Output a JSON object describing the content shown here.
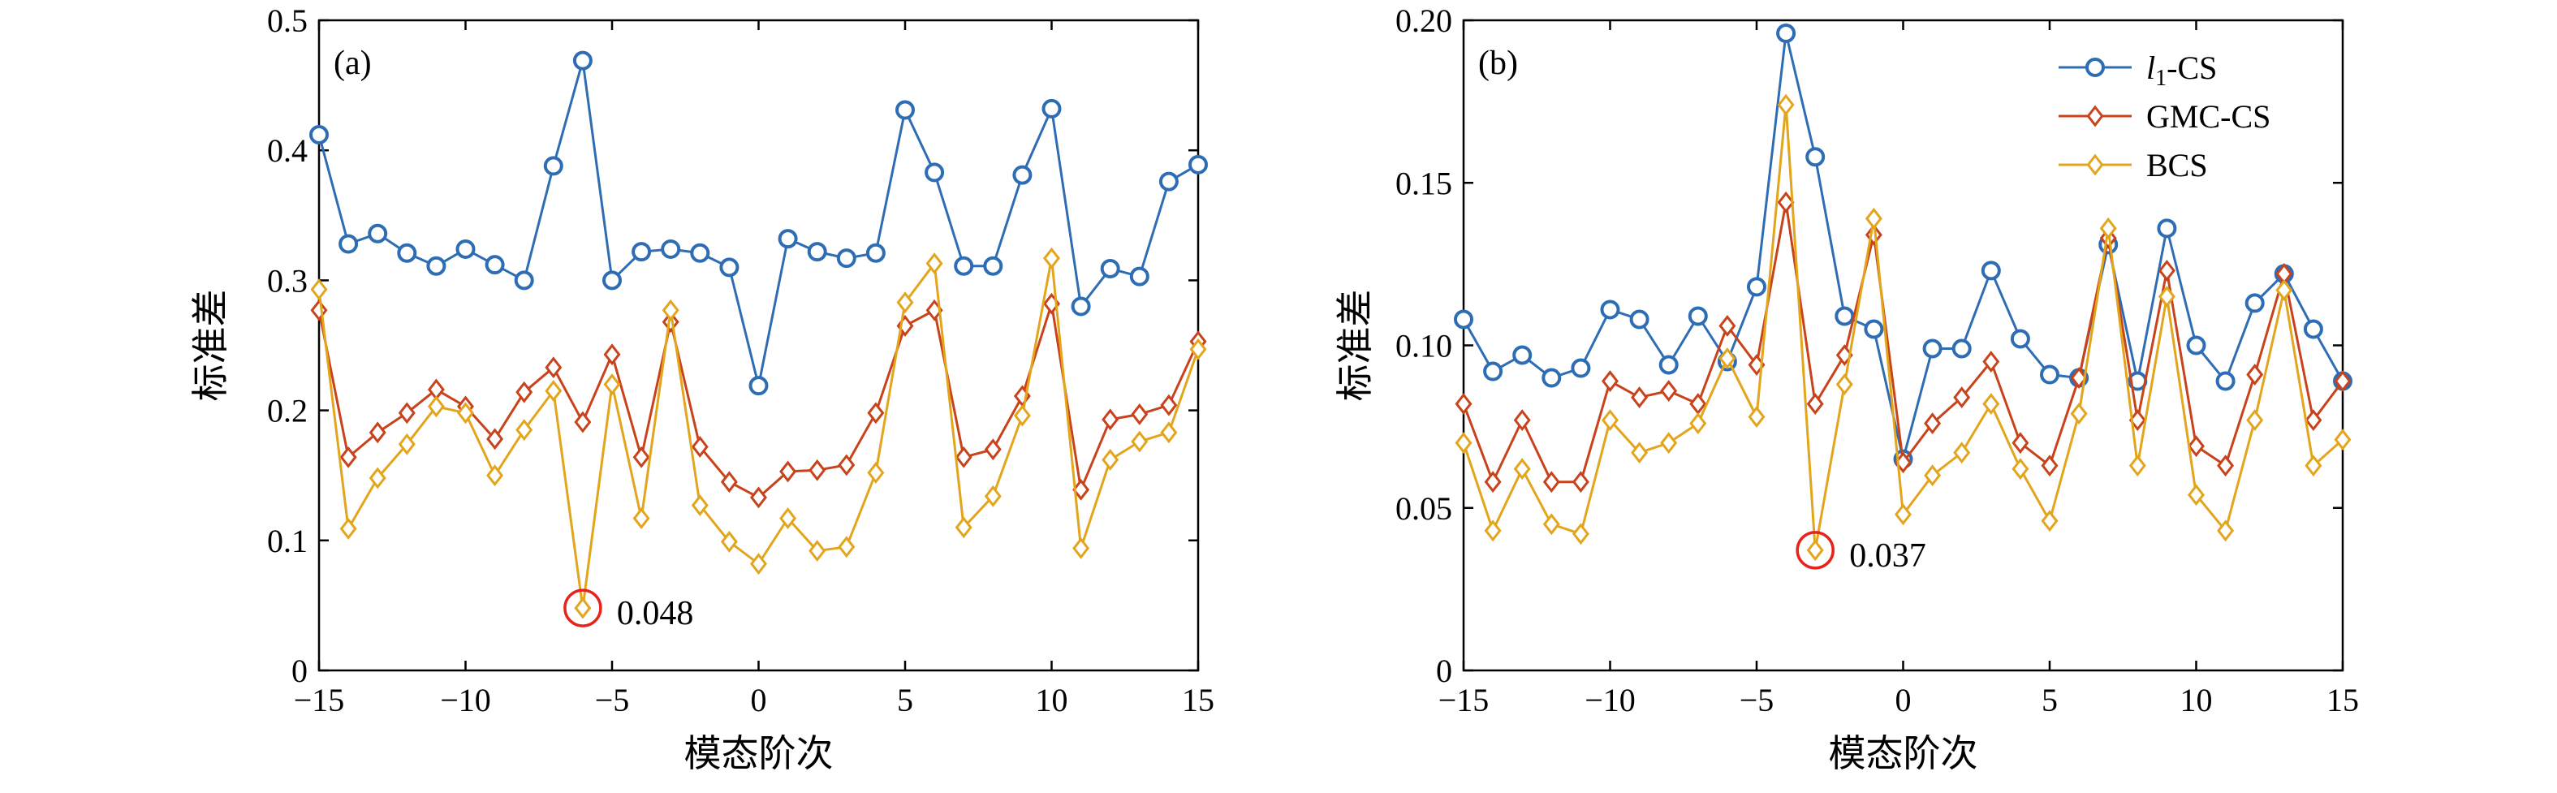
{
  "colors": {
    "l1": "#2e6db4",
    "gmc": "#c8431b",
    "bcs": "#e3a51c",
    "highlight": "#e8231c",
    "axis": "#000000"
  },
  "chart_data": [
    {
      "type": "line",
      "panel_label": "(a)",
      "xlabel": "模态阶次",
      "ylabel": "标准差",
      "xlim": [
        -15,
        15
      ],
      "ylim": [
        0,
        0.5
      ],
      "xticks": [
        -15,
        -10,
        -5,
        0,
        5,
        10,
        15
      ],
      "xtick_labels": [
        "−15",
        "−10",
        "−5",
        "0",
        "5",
        "10",
        "15"
      ],
      "yticks": [
        0,
        0.1,
        0.2,
        0.3,
        0.4,
        0.5
      ],
      "ytick_labels": [
        "0",
        "0.1",
        "0.2",
        "0.3",
        "0.4",
        "0.5"
      ],
      "grid": false,
      "x": [
        -15,
        -14,
        -13,
        -12,
        -11,
        -10,
        -9,
        -8,
        -7,
        -6,
        -5,
        -4,
        -3,
        -2,
        -1,
        0,
        1,
        2,
        3,
        4,
        5,
        6,
        7,
        8,
        9,
        10,
        11,
        12,
        13,
        14,
        15
      ],
      "series": [
        {
          "name": "l1-CS",
          "color_key": "l1",
          "marker": "circle",
          "values": [
            0.412,
            0.328,
            0.336,
            0.321,
            0.311,
            0.324,
            0.312,
            0.3,
            0.388,
            0.469,
            0.3,
            0.322,
            0.324,
            0.321,
            0.31,
            0.219,
            0.332,
            0.322,
            0.317,
            0.321,
            0.431,
            0.383,
            0.311,
            0.311,
            0.381,
            0.432,
            0.28,
            0.309,
            0.303,
            0.376,
            0.389
          ]
        },
        {
          "name": "GMC-CS",
          "color_key": "gmc",
          "marker": "diamond",
          "values": [
            0.277,
            0.164,
            0.183,
            0.198,
            0.216,
            0.203,
            0.178,
            0.214,
            0.233,
            0.191,
            0.243,
            0.164,
            0.268,
            0.172,
            0.145,
            0.133,
            0.153,
            0.154,
            0.158,
            0.198,
            0.265,
            0.277,
            0.164,
            0.17,
            0.211,
            0.282,
            0.139,
            0.193,
            0.197,
            0.204,
            0.253
          ]
        },
        {
          "name": "BCS",
          "color_key": "bcs",
          "marker": "diamond",
          "values": [
            0.293,
            0.109,
            0.148,
            0.174,
            0.203,
            0.198,
            0.15,
            0.185,
            0.215,
            0.048,
            0.22,
            0.117,
            0.277,
            0.127,
            0.099,
            0.082,
            0.117,
            0.092,
            0.095,
            0.152,
            0.283,
            0.313,
            0.11,
            0.134,
            0.196,
            0.317,
            0.094,
            0.162,
            0.176,
            0.183,
            0.247
          ]
        }
      ],
      "annotation": {
        "text": "0.048",
        "x": -6,
        "y": 0.048
      }
    },
    {
      "type": "line",
      "panel_label": "(b)",
      "xlabel": "模态阶次",
      "ylabel": "标准差",
      "xlim": [
        -15,
        15
      ],
      "ylim": [
        0,
        0.2
      ],
      "xticks": [
        -15,
        -10,
        -5,
        0,
        5,
        10,
        15
      ],
      "xtick_labels": [
        "−15",
        "−10",
        "−5",
        "0",
        "5",
        "10",
        "15"
      ],
      "yticks": [
        0,
        0.05,
        0.1,
        0.15,
        0.2
      ],
      "ytick_labels": [
        "0",
        "0.05",
        "0.10",
        "0.15",
        "0.20"
      ],
      "grid": false,
      "legend_position": "top-right",
      "x": [
        -15,
        -14,
        -13,
        -12,
        -11,
        -10,
        -9,
        -8,
        -7,
        -6,
        -5,
        -4,
        -3,
        -2,
        -1,
        0,
        1,
        2,
        3,
        4,
        5,
        6,
        7,
        8,
        9,
        10,
        11,
        12,
        13,
        14,
        15
      ],
      "series": [
        {
          "name": "l1-CS",
          "legend_main": "l",
          "legend_sub": "1",
          "legend_rest": "-CS",
          "color_key": "l1",
          "marker": "circle",
          "values": [
            0.108,
            0.092,
            0.097,
            0.09,
            0.093,
            0.111,
            0.108,
            0.094,
            0.109,
            0.095,
            0.118,
            0.196,
            0.158,
            0.109,
            0.105,
            0.065,
            0.099,
            0.099,
            0.123,
            0.102,
            0.091,
            0.09,
            0.131,
            0.089,
            0.136,
            0.1,
            0.089,
            0.113,
            0.122,
            0.105,
            0.089
          ]
        },
        {
          "name": "GMC-CS",
          "legend_main": "GMC-CS",
          "legend_sub": "",
          "legend_rest": "",
          "color_key": "gmc",
          "marker": "diamond",
          "values": [
            0.082,
            0.058,
            0.077,
            0.058,
            0.058,
            0.089,
            0.084,
            0.086,
            0.082,
            0.106,
            0.094,
            0.144,
            0.082,
            0.097,
            0.134,
            0.064,
            0.076,
            0.084,
            0.095,
            0.07,
            0.063,
            0.09,
            0.133,
            0.077,
            0.123,
            0.069,
            0.063,
            0.091,
            0.122,
            0.077,
            0.089
          ]
        },
        {
          "name": "BCS",
          "legend_main": "BCS",
          "legend_sub": "",
          "legend_rest": "",
          "color_key": "bcs",
          "marker": "diamond",
          "values": [
            0.07,
            0.043,
            0.062,
            0.045,
            0.042,
            0.077,
            0.067,
            0.07,
            0.076,
            0.096,
            0.078,
            0.174,
            0.037,
            0.088,
            0.139,
            0.048,
            0.06,
            0.067,
            0.082,
            0.062,
            0.046,
            0.079,
            0.136,
            0.063,
            0.115,
            0.054,
            0.043,
            0.077,
            0.117,
            0.063,
            0.071
          ]
        }
      ],
      "annotation": {
        "text": "0.037",
        "x": -3,
        "y": 0.037
      }
    }
  ]
}
